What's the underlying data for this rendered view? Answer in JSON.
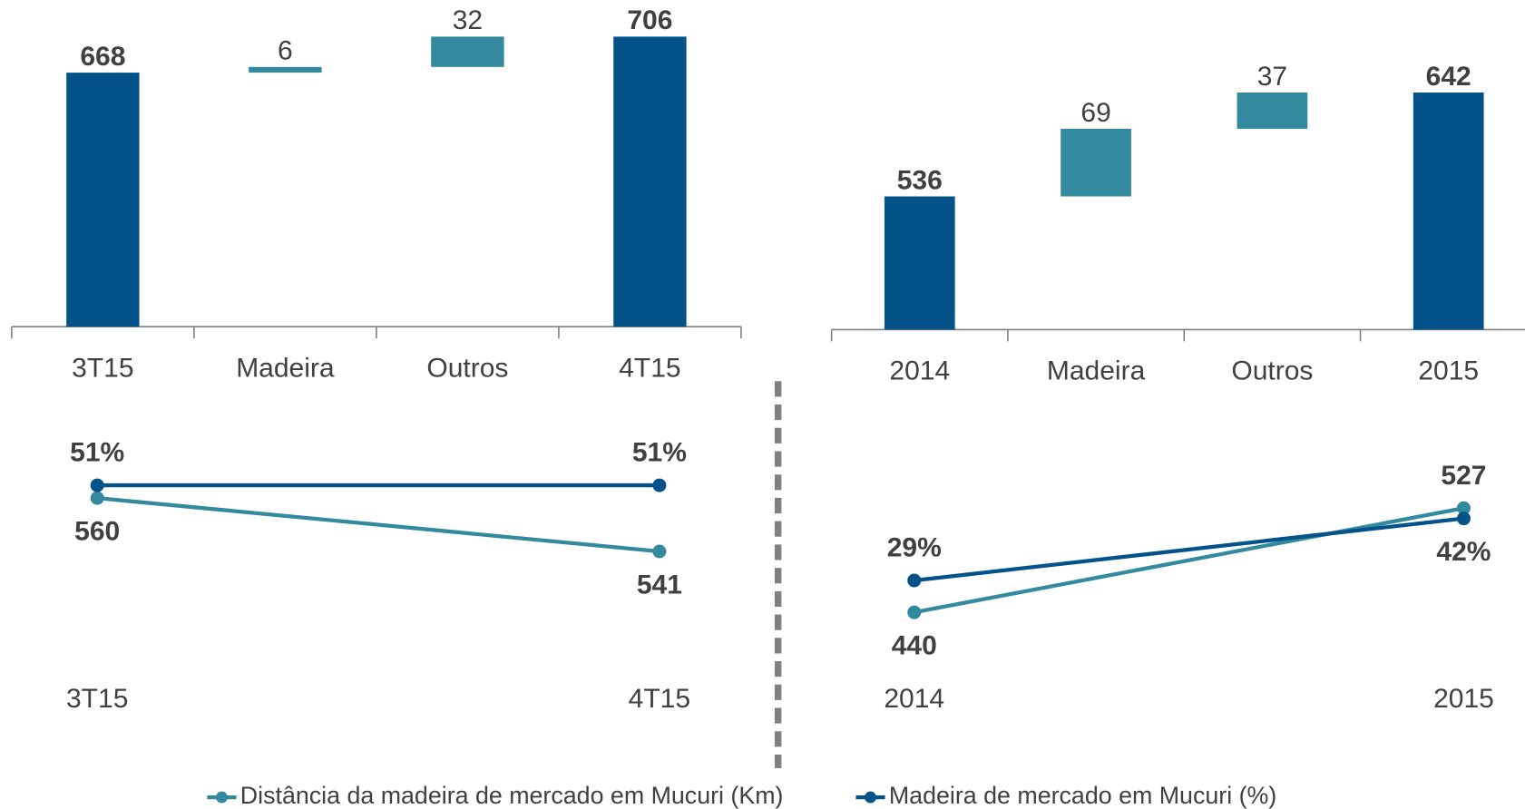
{
  "chart_data": [
    {
      "type": "waterfall",
      "categories": [
        "3T15",
        "Madeira",
        "Outros",
        "4T15"
      ],
      "values": [
        668,
        6,
        32,
        706
      ],
      "measures": [
        "total",
        "relative",
        "relative",
        "total"
      ],
      "colors": [
        "#03538a",
        "#338a9e",
        "#338a9e",
        "#03538a"
      ],
      "ylim": [
        400,
        720
      ]
    },
    {
      "type": "waterfall",
      "categories": [
        "2014",
        "Madeira",
        "Outros",
        "2015"
      ],
      "values": [
        536,
        69,
        37,
        642
      ],
      "measures": [
        "total",
        "relative",
        "relative",
        "total"
      ],
      "colors": [
        "#03538a",
        "#338a9e",
        "#338a9e",
        "#03538a"
      ],
      "ylim": [
        400,
        660
      ]
    },
    {
      "type": "line",
      "categories": [
        "3T15",
        "4T15"
      ],
      "ylim": [
        495,
        585
      ],
      "y2lim": [
        0,
        66
      ],
      "series": [
        {
          "name": "Distância da madeira de mercado em Mucuri (Km)",
          "color": "#338a9e",
          "values": [
            560,
            541
          ]
        },
        {
          "name": "Madeira de mercado em Mucuri (%)",
          "color": "#03538a",
          "axis": "y2",
          "values": [
            51,
            51
          ],
          "value_labels": [
            "51%",
            "51%"
          ]
        }
      ]
    },
    {
      "type": "line",
      "categories": [
        "2014",
        "2015"
      ],
      "ylim": [
        383,
        594
      ],
      "y2lim": [
        8,
        61
      ],
      "series": [
        {
          "name": "Distância da madeira de mercado em Mucuri (Km)",
          "color": "#338a9e",
          "values": [
            440,
            527
          ]
        },
        {
          "name": "Madeira de mercado em Mucuri (%)",
          "color": "#03538a",
          "axis": "y2",
          "values": [
            29,
            42
          ],
          "value_labels": [
            "29%",
            "42%"
          ]
        }
      ]
    }
  ]
}
